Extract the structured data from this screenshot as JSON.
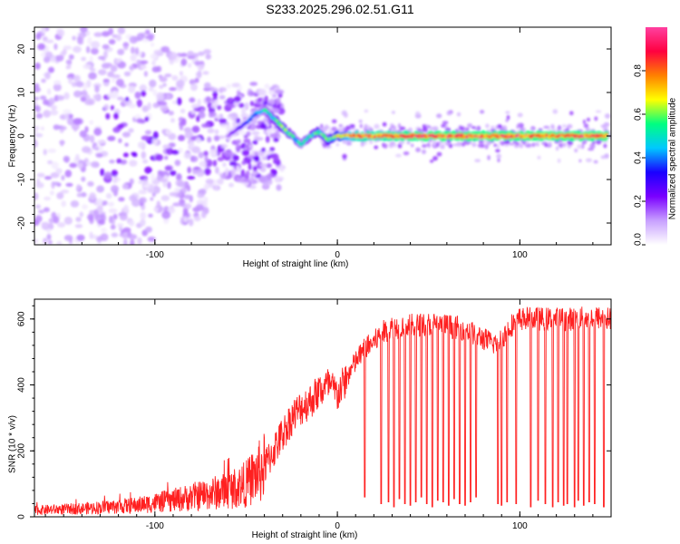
{
  "figure_title": "S233.2025.296.02.51.G11",
  "chart_data": [
    {
      "type": "heatmap",
      "xlabel": "Height of straight line (km)",
      "ylabel": "Frequency (Hz)",
      "xlim": [
        -166,
        150
      ],
      "ylim": [
        -25,
        25
      ],
      "xticks": [
        -100,
        0,
        100
      ],
      "yticks": [
        -20,
        -10,
        0,
        10,
        20
      ],
      "colorbar": {
        "label": "Normalized spectral amplitude",
        "range": [
          0,
          1
        ],
        "ticks": [
          "0.0",
          "0.2",
          "0.4",
          "0.6",
          "0.8"
        ],
        "tick_values": [
          0.0,
          0.2,
          0.4,
          0.6,
          0.8
        ],
        "colormap": [
          "#ffffff",
          "#c8a0ff",
          "#7a00ff",
          "#1a00ff",
          "#00c8ff",
          "#00ff80",
          "#ffff00",
          "#ff8000",
          "#ff0040",
          "#ff40a0"
        ]
      },
      "ridge": {
        "x": [
          -60,
          -50,
          -45,
          -40,
          -35,
          -30,
          -25,
          -20,
          -15,
          -10,
          -5,
          0,
          10,
          50,
          100,
          148
        ],
        "freq": [
          0.0,
          3.0,
          5.0,
          6.0,
          4.0,
          2.0,
          0.0,
          -2.0,
          0.0,
          1.0,
          -1.0,
          0.0,
          0.0,
          0.0,
          0.0,
          0.0
        ],
        "amplitude": [
          0.15,
          0.35,
          0.45,
          0.5,
          0.55,
          0.6,
          0.55,
          0.5,
          0.55,
          0.6,
          0.6,
          0.7,
          0.85,
          0.9,
          0.9,
          0.9
        ]
      },
      "noise_region": {
        "x_range": [
          -166,
          -50
        ],
        "freq_range": [
          -25,
          25
        ],
        "amplitude": "low (0.0–0.2), scattered"
      }
    },
    {
      "type": "line",
      "xlabel": "Height of straight line (km)",
      "ylabel": "SNR (10 * v/v)",
      "xlim": [
        -166,
        150
      ],
      "ylim": [
        0,
        660
      ],
      "xticks": [
        -100,
        0,
        100
      ],
      "yticks": [
        0,
        200,
        400,
        600
      ],
      "line_color": "#ff2020",
      "envelope": {
        "x": [
          -166,
          -140,
          -110,
          -90,
          -70,
          -60,
          -50,
          -40,
          -35,
          -30,
          -25,
          -20,
          -15,
          -10,
          -5,
          0,
          5,
          10,
          15,
          20,
          25,
          30,
          40,
          50,
          60,
          70,
          80,
          85,
          90,
          95,
          100,
          110,
          120,
          130,
          140,
          150
        ],
        "snr": [
          20,
          25,
          35,
          50,
          70,
          80,
          100,
          150,
          200,
          250,
          300,
          330,
          350,
          380,
          400,
          370,
          420,
          470,
          510,
          530,
          560,
          575,
          580,
          585,
          580,
          570,
          540,
          525,
          540,
          580,
          600,
          600,
          600,
          600,
          605,
          600
        ]
      },
      "dropouts": {
        "x": [
          15,
          24,
          28,
          31,
          34,
          37,
          40,
          43,
          46,
          49,
          52,
          55,
          58,
          61,
          64,
          67,
          70,
          73,
          76,
          88,
          90,
          93,
          98,
          106,
          110,
          114,
          118,
          121,
          124,
          126,
          130,
          132,
          135,
          138,
          141,
          146
        ],
        "snr": [
          60,
          40,
          45,
          30,
          55,
          40,
          35,
          45,
          60,
          40,
          30,
          50,
          45,
          35,
          55,
          40,
          35,
          45,
          60,
          40,
          35,
          45,
          40,
          30,
          50,
          40,
          30,
          45,
          35,
          40,
          30,
          50,
          35,
          45,
          40,
          30
        ]
      }
    }
  ]
}
